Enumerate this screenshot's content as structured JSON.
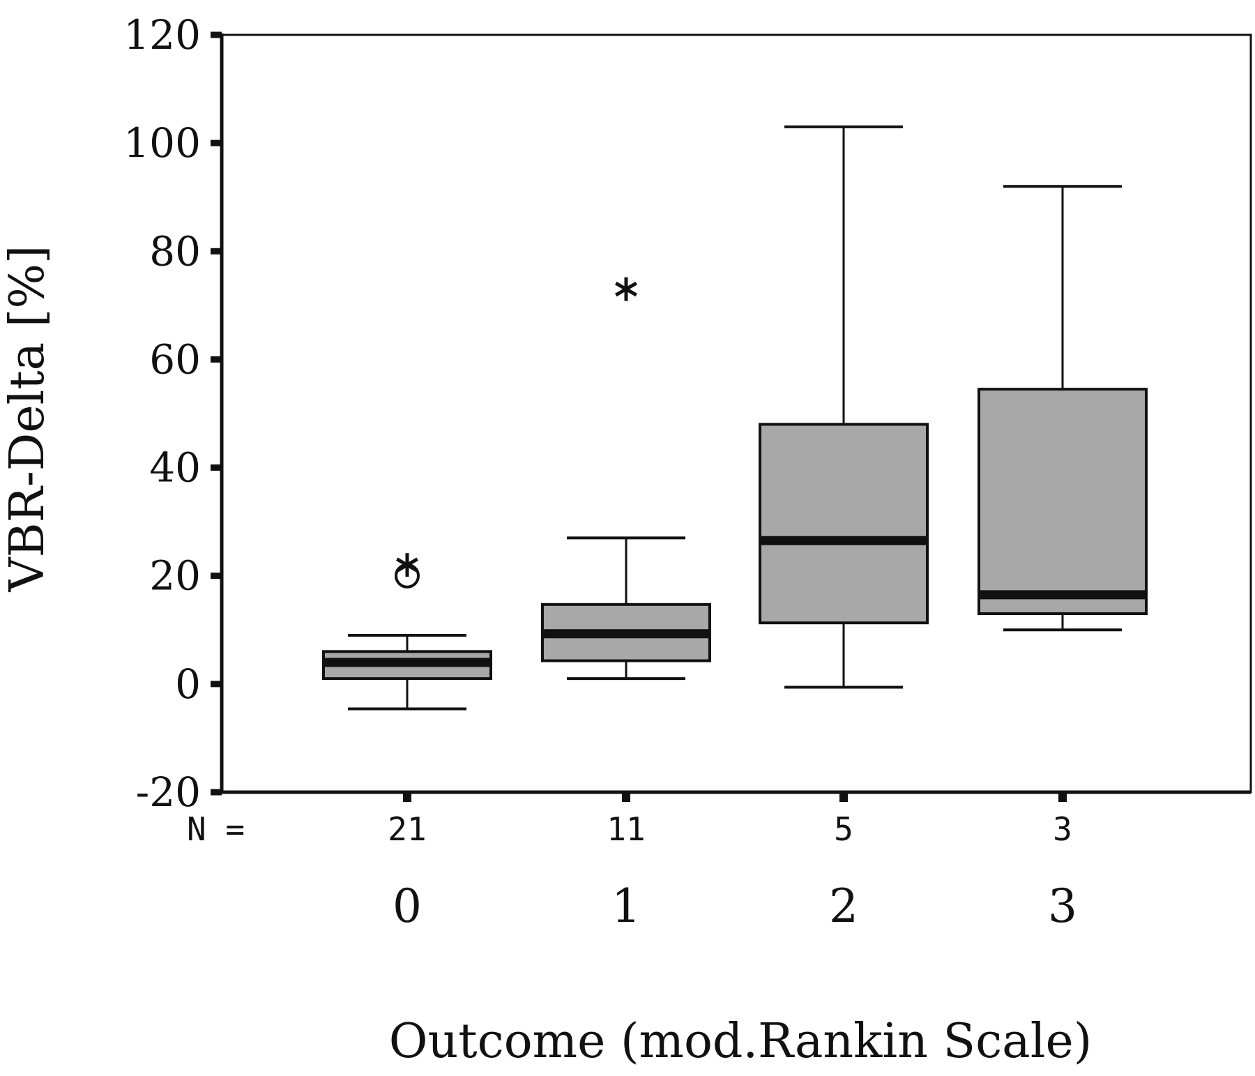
{
  "chart_data": {
    "type": "box",
    "title": "",
    "xlabel": "Outcome (mod.Rankin Scale)",
    "ylabel": "VBR-Delta [%]",
    "ylim": [
      -20,
      120
    ],
    "yticks": [
      -20,
      0,
      20,
      40,
      60,
      80,
      100,
      120
    ],
    "n_prefix": "N =",
    "categories": [
      "0",
      "1",
      "2",
      "3"
    ],
    "n_values": [
      "21",
      "11",
      "5",
      "3"
    ],
    "grid": false,
    "box_fill": "#a8a8a8",
    "line_color": "#111111",
    "boxes": [
      {
        "category": "0",
        "n": 21,
        "whisker_low": -4.6,
        "q1": 1.0,
        "median": 4.0,
        "q3": 6.0,
        "whisker_high": 9.0,
        "outliers": [
          {
            "value": 20.0,
            "marker": "circle"
          },
          {
            "value": 22.0,
            "marker": "star"
          }
        ]
      },
      {
        "category": "1",
        "n": 11,
        "whisker_low": 1.0,
        "q1": 4.3,
        "median": 9.3,
        "q3": 14.7,
        "whisker_high": 27.0,
        "outliers": [
          {
            "value": 73.0,
            "marker": "star"
          }
        ]
      },
      {
        "category": "2",
        "n": 5,
        "whisker_low": -0.6,
        "q1": 11.3,
        "median": 26.5,
        "q3": 48.0,
        "whisker_high": 103.0,
        "outliers": []
      },
      {
        "category": "3",
        "n": 3,
        "whisker_low": 10.0,
        "q1": 13.0,
        "median": 16.5,
        "q3": 54.5,
        "whisker_high": 92.0,
        "outliers": []
      }
    ]
  }
}
